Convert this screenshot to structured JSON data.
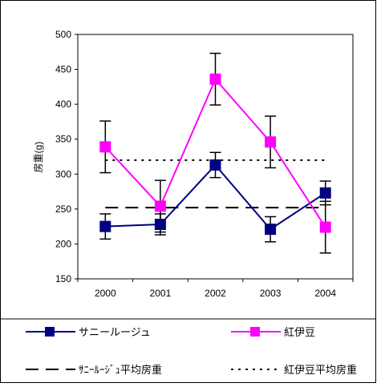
{
  "chart_data": {
    "type": "line",
    "title": "",
    "xlabel": "",
    "ylabel": "房重(g)",
    "categories": [
      "2000",
      "2001",
      "2002",
      "2003",
      "2004"
    ],
    "ylim": [
      150,
      500
    ],
    "yticks": [
      150,
      200,
      250,
      300,
      350,
      400,
      450,
      500
    ],
    "grid": false,
    "legend_position": "bottom",
    "series": [
      {
        "name": "サニールージュ",
        "values": [
          225,
          228,
          313,
          221,
          273
        ],
        "error": [
          18,
          15,
          18,
          18,
          17
        ],
        "color": "#000080",
        "marker": "square",
        "line_style": "solid"
      },
      {
        "name": "紅伊豆",
        "values": [
          339,
          254,
          436,
          346,
          224
        ],
        "error": [
          37,
          37,
          37,
          37,
          37
        ],
        "color": "#ff00ff",
        "marker": "square",
        "line_style": "solid"
      }
    ],
    "reference_lines": [
      {
        "name": "ｻﾆｰﾙｰｼﾞｭ平均房重",
        "value": 252,
        "color": "#000000",
        "line_style": "dashed"
      },
      {
        "name": "紅伊豆平均房重",
        "value": 320,
        "color": "#000000",
        "line_style": "dotted"
      }
    ]
  }
}
